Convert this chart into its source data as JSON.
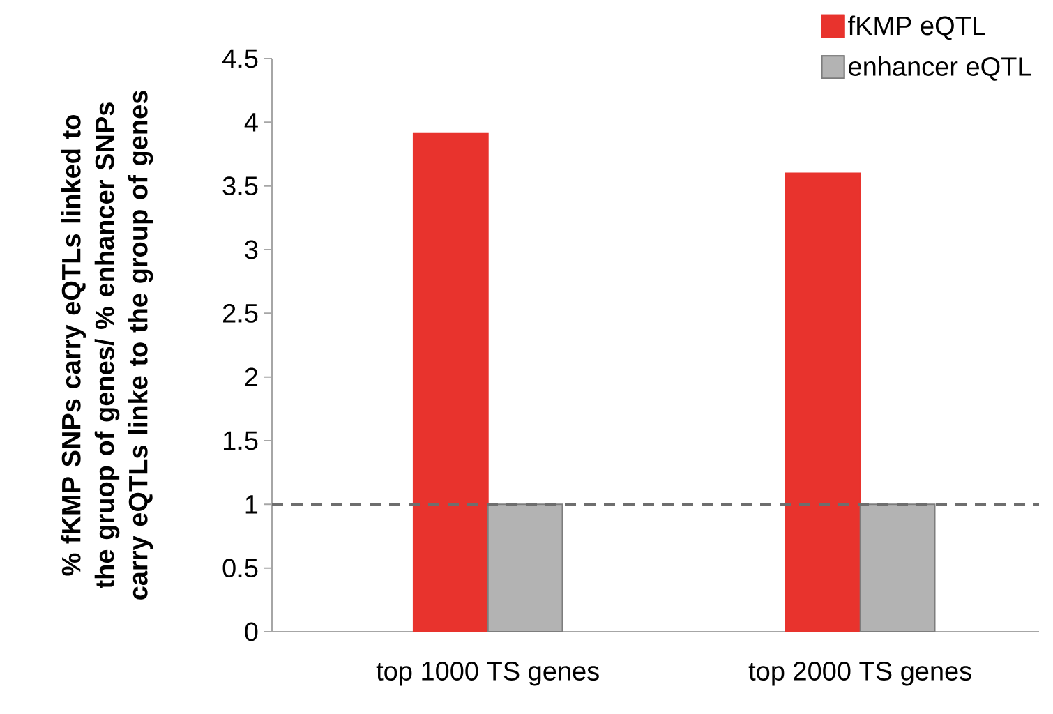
{
  "chart_data": {
    "type": "bar",
    "ylabel": "% fKMP SNPs carry eQTLs linked to the gruop of genes/ % enhancer SNPs carry eQTLs linke to the group of genes",
    "categories": [
      "top 1000 TS genes",
      "top 2000 TS genes"
    ],
    "series": [
      {
        "name": "fKMP eQTL",
        "color": "#e8332d",
        "values": [
          3.91,
          3.6
        ]
      },
      {
        "name": "enhancer eQTL",
        "color": "#b3b3b3",
        "values": [
          1,
          1
        ]
      }
    ],
    "ylim": [
      0,
      4.5
    ],
    "yticks": [
      0,
      0.5,
      1,
      1.5,
      2,
      2.5,
      3,
      3.5,
      4,
      4.5
    ],
    "ref_lines": [
      {
        "axis": "y",
        "value": 1,
        "color": "#6e6e6e",
        "line_style": "dashed"
      }
    ],
    "legend": "top right"
  }
}
